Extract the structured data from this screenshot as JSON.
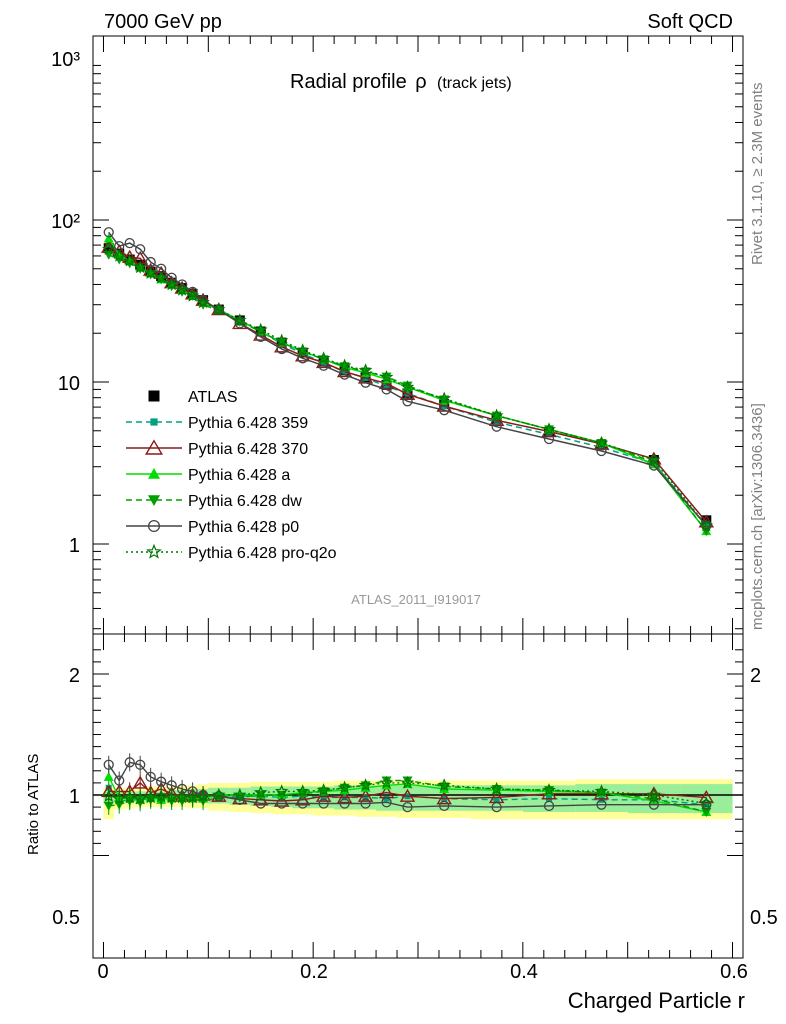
{
  "header": {
    "left": "7000 GeV pp",
    "right": "Soft QCD"
  },
  "side_labels": {
    "rivet": "Rivet 3.1.10, ≥ 2.3M events",
    "mcplots": "mcplots.cern.ch [arXiv:1306.3436]"
  },
  "main_plot": {
    "title": "Radial profile",
    "title_symbol": "ρ",
    "title_suffix": "(track jets)",
    "analysis_id": "ATLAS_2011_I919017",
    "yscale": "log",
    "ylim": [
      0.3,
      1300
    ],
    "ytick_labels": [
      "1",
      "10",
      "10²",
      "10³"
    ]
  },
  "ratio_plot": {
    "ylabel": "Ratio to ATLAS",
    "ylim": [
      0.4,
      2.3
    ],
    "ytick_labels": [
      "0.5",
      "1",
      "2"
    ]
  },
  "xaxis": {
    "label": "Charged Particle r",
    "xlim": [
      -0.01,
      0.61
    ],
    "tick_labels": [
      "0",
      "0.2",
      "0.4",
      "0.6"
    ]
  },
  "chart_data": {
    "type": "line",
    "x": [
      0.005,
      0.015,
      0.025,
      0.035,
      0.045,
      0.055,
      0.065,
      0.075,
      0.085,
      0.095,
      0.11,
      0.13,
      0.15,
      0.17,
      0.19,
      0.21,
      0.23,
      0.25,
      0.27,
      0.29,
      0.325,
      0.375,
      0.425,
      0.475,
      0.525,
      0.575
    ],
    "series": [
      {
        "name": "ATLAS",
        "color": "#000000",
        "line": "none",
        "marker": "square-filled",
        "values": [
          67,
          62,
          57,
          53,
          48,
          45,
          41,
          38,
          35,
          32,
          28,
          24,
          20.5,
          17.5,
          15.2,
          13.4,
          11.8,
          10.7,
          9.6,
          8.5,
          7.3,
          5.9,
          4.9,
          4.1,
          3.3,
          1.4
        ]
      },
      {
        "name": "Pythia 6.428 359",
        "color": "#00a080",
        "line": "dashed",
        "marker": "square-small",
        "values": [
          71,
          59,
          55,
          51,
          47,
          44,
          40,
          37,
          34,
          31,
          28,
          24,
          20.5,
          17.2,
          15,
          13.1,
          11.6,
          10.6,
          9.4,
          8.5,
          7.1,
          5.65,
          4.75,
          3.95,
          3.15,
          1.3
        ]
      },
      {
        "name": "Pythia 6.428 370",
        "color": "#8b1a1a",
        "line": "solid",
        "marker": "triangle-open",
        "values": [
          68,
          64,
          59,
          58,
          49,
          47,
          41,
          38,
          35,
          32,
          28,
          23,
          19.5,
          16.5,
          14.5,
          13.2,
          11.6,
          10.6,
          9.8,
          8.4,
          7.1,
          5.8,
          4.95,
          4.15,
          3.35,
          1.37
        ]
      },
      {
        "name": "Pythia 6.428 a",
        "color": "#00dd00",
        "line": "solid",
        "marker": "triangle-filled",
        "values": [
          77,
          61,
          56,
          51,
          47,
          43,
          40,
          37,
          34,
          31,
          28,
          24,
          20.5,
          17.5,
          15.5,
          13.8,
          12.3,
          11.4,
          10.4,
          9.3,
          7.7,
          6.2,
          5.1,
          4.2,
          3.1,
          1.2
        ]
      },
      {
        "name": "Pythia 6.428 dw",
        "color": "#00a000",
        "line": "dashed",
        "marker": "triangle-down-filled",
        "values": [
          61,
          57,
          54,
          50,
          46,
          43,
          39,
          36,
          34,
          30,
          27.5,
          23.5,
          20.5,
          17.5,
          15.4,
          13.8,
          12.5,
          11.6,
          10.8,
          9.5,
          7.8,
          6.2,
          5.1,
          4.2,
          3.2,
          1.2
        ]
      },
      {
        "name": "Pythia 6.428 p0",
        "color": "#444444",
        "line": "solid",
        "marker": "circle-open",
        "values": [
          84,
          69,
          72,
          66,
          55,
          50,
          44,
          40,
          36,
          32,
          28,
          23,
          19,
          16,
          14,
          12.6,
          11.1,
          9.9,
          9,
          7.6,
          6.7,
          5.3,
          4.45,
          3.75,
          3.05,
          1.3
        ]
      },
      {
        "name": "Pythia 6.428 pro-q2o",
        "color": "#007700",
        "line": "dotted",
        "marker": "star-open",
        "values": [
          66,
          60,
          56,
          51,
          47,
          44,
          40,
          37,
          34,
          31,
          28,
          24,
          21,
          18,
          15.7,
          14,
          12.6,
          11.8,
          10.7,
          9.3,
          7.9,
          6.2,
          5.1,
          4.2,
          3.3,
          1.3
        ]
      }
    ],
    "ratio": {
      "band_x_edges": [
        0.0,
        0.01,
        0.02,
        0.03,
        0.04,
        0.05,
        0.06,
        0.07,
        0.08,
        0.09,
        0.1,
        0.12,
        0.14,
        0.16,
        0.18,
        0.2,
        0.22,
        0.24,
        0.26,
        0.28,
        0.3,
        0.35,
        0.4,
        0.45,
        0.5,
        0.55,
        0.6
      ],
      "band_inner_lo": [
        0.93,
        0.94,
        0.94,
        0.94,
        0.94,
        0.94,
        0.94,
        0.94,
        0.94,
        0.94,
        0.93,
        0.92,
        0.91,
        0.9,
        0.89,
        0.89,
        0.88,
        0.88,
        0.87,
        0.87,
        0.87,
        0.87,
        0.86,
        0.86,
        0.85,
        0.85
      ],
      "band_inner_hi": [
        1.03,
        1.03,
        1.03,
        1.03,
        1.03,
        1.03,
        1.04,
        1.04,
        1.05,
        1.05,
        1.06,
        1.06,
        1.07,
        1.07,
        1.07,
        1.07,
        1.08,
        1.08,
        1.08,
        1.08,
        1.08,
        1.08,
        1.08,
        1.09,
        1.09,
        1.09
      ],
      "band_outer_lo": [
        0.8,
        0.88,
        0.89,
        0.9,
        0.9,
        0.9,
        0.9,
        0.9,
        0.89,
        0.89,
        0.87,
        0.86,
        0.85,
        0.84,
        0.84,
        0.83,
        0.83,
        0.82,
        0.82,
        0.81,
        0.81,
        0.8,
        0.8,
        0.8,
        0.8,
        0.8
      ],
      "band_outer_hi": [
        1.06,
        1.06,
        1.06,
        1.06,
        1.07,
        1.07,
        1.07,
        1.08,
        1.08,
        1.09,
        1.1,
        1.1,
        1.11,
        1.11,
        1.11,
        1.11,
        1.12,
        1.12,
        1.12,
        1.12,
        1.12,
        1.12,
        1.12,
        1.13,
        1.13,
        1.13
      ],
      "series": [
        {
          "name": "Pythia 6.428 359",
          "values": [
            1.06,
            0.95,
            0.96,
            0.96,
            0.97,
            0.97,
            0.97,
            0.98,
            0.98,
            0.98,
            0.99,
            0.99,
            0.99,
            0.98,
            0.99,
            0.98,
            0.98,
            0.98,
            0.97,
            0.99,
            0.97,
            0.96,
            0.97,
            0.96,
            0.96,
            0.92
          ]
        },
        {
          "name": "Pythia 6.428 370",
          "values": [
            1.03,
            1.03,
            1.03,
            1.1,
            1.02,
            1.05,
            1.01,
            0.99,
            1.0,
            1.0,
            0.99,
            0.97,
            0.96,
            0.95,
            0.96,
            0.99,
            0.98,
            0.99,
            1.02,
            0.99,
            0.97,
            0.98,
            1.01,
            1.01,
            1.01,
            0.98
          ]
        },
        {
          "name": "Pythia 6.428 a",
          "values": [
            1.15,
            0.98,
            0.98,
            0.96,
            0.98,
            0.96,
            0.98,
            0.98,
            0.97,
            0.97,
            1.0,
            1.0,
            1.0,
            1.0,
            1.02,
            1.03,
            1.04,
            1.06,
            1.08,
            1.09,
            1.05,
            1.04,
            1.03,
            1.02,
            0.95,
            0.86
          ]
        },
        {
          "name": "Pythia 6.428 dw",
          "values": [
            0.91,
            0.92,
            0.95,
            0.94,
            0.96,
            0.96,
            0.95,
            0.95,
            0.97,
            0.95,
            0.98,
            0.98,
            1.0,
            1.0,
            1.01,
            1.03,
            1.06,
            1.08,
            1.12,
            1.12,
            1.07,
            1.05,
            1.04,
            1.02,
            0.97,
            0.86
          ]
        },
        {
          "name": "Pythia 6.428 p0",
          "values": [
            1.25,
            1.12,
            1.27,
            1.25,
            1.15,
            1.11,
            1.08,
            1.05,
            1.03,
            1.0,
            0.99,
            0.96,
            0.93,
            0.93,
            0.93,
            0.93,
            0.93,
            0.93,
            0.94,
            0.9,
            0.91,
            0.9,
            0.91,
            0.92,
            0.92,
            0.92
          ]
        },
        {
          "name": "Pythia 6.428 pro-q2o",
          "values": [
            0.99,
            0.97,
            0.98,
            0.97,
            0.98,
            0.99,
            0.98,
            0.98,
            0.98,
            0.99,
            1.0,
            1.0,
            1.02,
            1.03,
            1.03,
            1.04,
            1.06,
            1.08,
            1.1,
            1.1,
            1.08,
            1.05,
            1.04,
            1.03,
            1.0,
            0.93
          ]
        }
      ]
    }
  }
}
